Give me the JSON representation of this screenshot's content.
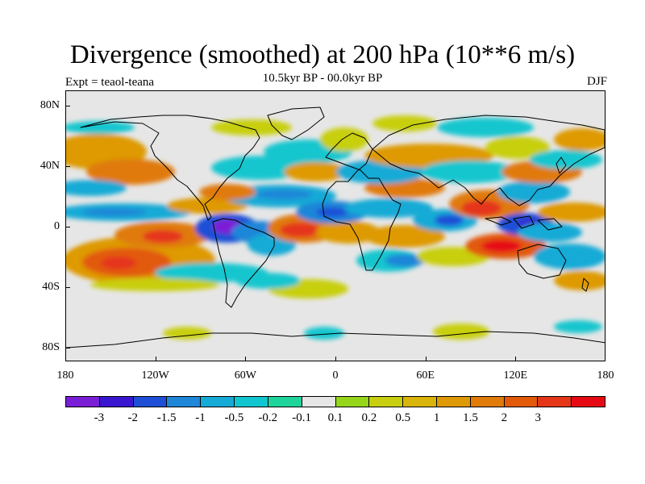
{
  "title": "Divergence (smoothed) at 200 hPa (10**6 m/s)",
  "subtitle": "10.5kyr BP - 00.0kyr BP",
  "experiment": "Expt = teaol-teana",
  "season": "DJF",
  "lat_labels": [
    "80N",
    "40N",
    "0",
    "40S",
    "80S"
  ],
  "lon_labels": [
    "180",
    "120W",
    "60W",
    "0",
    "60E",
    "120E",
    "180"
  ],
  "colorbar": {
    "colors": [
      "#7b1fd6",
      "#3a16d0",
      "#1f4fd6",
      "#1f86d8",
      "#16aad6",
      "#12c6cf",
      "#1ed49a",
      "#e6e6e6",
      "#96d61a",
      "#c8cf10",
      "#d9b40a",
      "#de9a06",
      "#e07a08",
      "#e25a0a",
      "#e5361a",
      "#e60a14"
    ],
    "labels": [
      "-3",
      "-2",
      "-1.5",
      "-1",
      "-0.5",
      "-0.2",
      "-0.1",
      "0.1",
      "0.2",
      "0.5",
      "1",
      "1.5",
      "2",
      "3"
    ]
  }
}
